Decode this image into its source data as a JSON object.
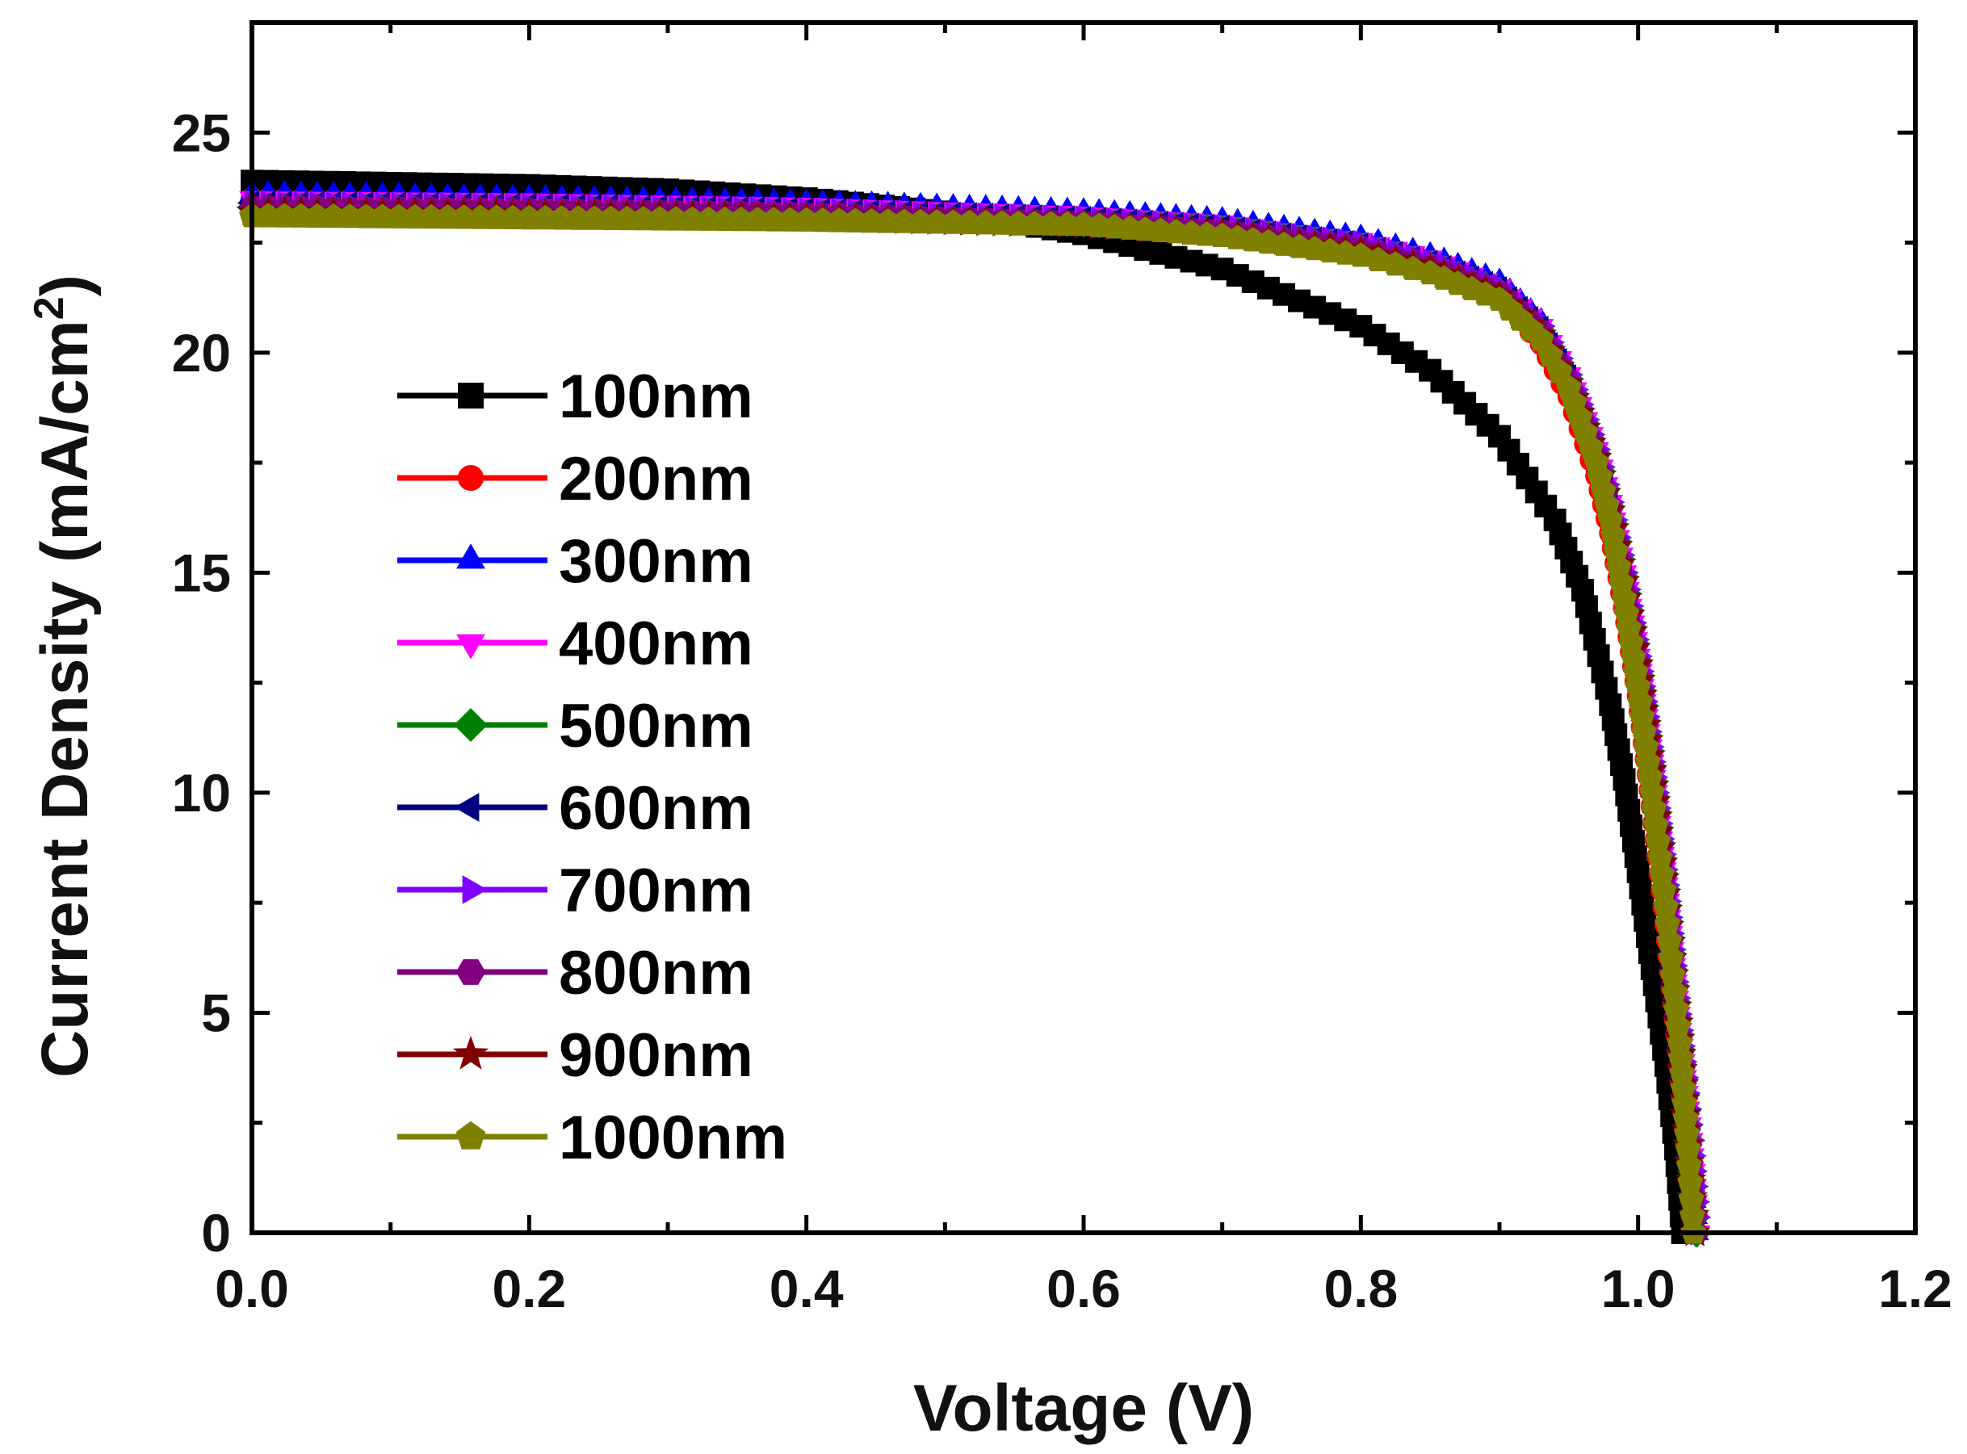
{
  "chart_data": {
    "type": "line",
    "title": "",
    "xlabel": "Voltage (V)",
    "ylabel_main": "Current Density (mA/cm",
    "ylabel_sup": "2",
    "ylabel_close": ")",
    "xlim": [
      0.0,
      1.2
    ],
    "ylim": [
      0,
      27.5
    ],
    "xticks": [
      0.0,
      0.2,
      0.4,
      0.6,
      0.8,
      1.0,
      1.2
    ],
    "xtick_labels": [
      "0.0",
      "0.2",
      "0.4",
      "0.6",
      "0.8",
      "1.0",
      "1.2"
    ],
    "yticks": [
      0,
      5,
      10,
      15,
      20,
      25
    ],
    "ytick_labels": [
      "0",
      "5",
      "10",
      "15",
      "20",
      "25"
    ],
    "grid": false,
    "legend_position": "center-left",
    "series": [
      {
        "name": "100nm",
        "color": "#000000",
        "marker": "square",
        "voc": 1.032,
        "jsc": 23.9,
        "points": [
          [
            0.0,
            23.9
          ],
          [
            0.1,
            23.85
          ],
          [
            0.2,
            23.8
          ],
          [
            0.3,
            23.7
          ],
          [
            0.4,
            23.5
          ],
          [
            0.5,
            23.2
          ],
          [
            0.6,
            22.7
          ],
          [
            0.7,
            21.9
          ],
          [
            0.8,
            20.6
          ],
          [
            0.85,
            19.6
          ],
          [
            0.9,
            18.1
          ],
          [
            0.94,
            16.2
          ],
          [
            0.96,
            14.6
          ],
          [
            0.98,
            12.0
          ],
          [
            0.99,
            10.3
          ],
          [
            1.0,
            8.2
          ],
          [
            1.01,
            6.0
          ],
          [
            1.02,
            3.8
          ],
          [
            1.027,
            1.9
          ],
          [
            1.032,
            0.0
          ]
        ]
      },
      {
        "name": "200nm",
        "color": "#ff0000",
        "marker": "circle",
        "voc": 1.04,
        "jsc": 23.5,
        "points": [
          [
            0.0,
            23.5
          ],
          [
            0.2,
            23.4
          ],
          [
            0.4,
            23.3
          ],
          [
            0.6,
            23.0
          ],
          [
            0.7,
            22.8
          ],
          [
            0.8,
            22.4
          ],
          [
            0.85,
            22.0
          ],
          [
            0.9,
            21.3
          ],
          [
            0.93,
            20.2
          ],
          [
            0.95,
            19.0
          ],
          [
            0.97,
            17.2
          ],
          [
            0.98,
            15.9
          ],
          [
            0.99,
            14.2
          ],
          [
            1.0,
            12.2
          ],
          [
            1.01,
            9.7
          ],
          [
            1.02,
            7.0
          ],
          [
            1.03,
            3.8
          ],
          [
            1.035,
            2.0
          ],
          [
            1.04,
            0.0
          ]
        ]
      },
      {
        "name": "300nm",
        "color": "#0000ff",
        "marker": "triangle-up",
        "voc": 1.042,
        "jsc": 23.6,
        "points": [
          [
            0.0,
            23.6
          ],
          [
            0.2,
            23.5
          ],
          [
            0.4,
            23.4
          ],
          [
            0.6,
            23.2
          ],
          [
            0.7,
            23.0
          ],
          [
            0.8,
            22.6
          ],
          [
            0.85,
            22.2
          ],
          [
            0.9,
            21.6
          ],
          [
            0.93,
            20.7
          ],
          [
            0.95,
            19.6
          ],
          [
            0.97,
            17.9
          ],
          [
            0.98,
            16.7
          ],
          [
            0.99,
            15.1
          ],
          [
            1.0,
            13.2
          ],
          [
            1.01,
            10.8
          ],
          [
            1.02,
            8.0
          ],
          [
            1.03,
            4.6
          ],
          [
            1.037,
            2.2
          ],
          [
            1.042,
            0.0
          ]
        ]
      },
      {
        "name": "400nm",
        "color": "#ff00ff",
        "marker": "triangle-down",
        "voc": 1.043,
        "jsc": 23.5,
        "points": [
          [
            0.0,
            23.5
          ],
          [
            0.2,
            23.45
          ],
          [
            0.4,
            23.35
          ],
          [
            0.6,
            23.15
          ],
          [
            0.7,
            22.95
          ],
          [
            0.8,
            22.55
          ],
          [
            0.85,
            22.15
          ],
          [
            0.9,
            21.5
          ],
          [
            0.93,
            20.6
          ],
          [
            0.95,
            19.5
          ],
          [
            0.97,
            17.8
          ],
          [
            0.98,
            16.6
          ],
          [
            0.99,
            15.0
          ],
          [
            1.0,
            13.1
          ],
          [
            1.01,
            10.7
          ],
          [
            1.02,
            7.9
          ],
          [
            1.03,
            4.6
          ],
          [
            1.038,
            2.1
          ],
          [
            1.043,
            0.0
          ]
        ]
      },
      {
        "name": "500nm",
        "color": "#008000",
        "marker": "diamond",
        "voc": 1.042,
        "jsc": 23.3,
        "points": [
          [
            0.0,
            23.3
          ],
          [
            0.2,
            23.25
          ],
          [
            0.4,
            23.15
          ],
          [
            0.6,
            22.95
          ],
          [
            0.7,
            22.8
          ],
          [
            0.8,
            22.4
          ],
          [
            0.85,
            22.0
          ],
          [
            0.9,
            21.4
          ],
          [
            0.93,
            20.5
          ],
          [
            0.95,
            19.4
          ],
          [
            0.97,
            17.7
          ],
          [
            0.98,
            16.5
          ],
          [
            0.99,
            14.9
          ],
          [
            1.0,
            13.0
          ],
          [
            1.01,
            10.6
          ],
          [
            1.02,
            7.8
          ],
          [
            1.03,
            4.5
          ],
          [
            1.037,
            2.1
          ],
          [
            1.042,
            0.0
          ]
        ]
      },
      {
        "name": "600nm",
        "color": "#000080",
        "marker": "triangle-left",
        "voc": 1.042,
        "jsc": 23.4,
        "points": [
          [
            0.0,
            23.4
          ],
          [
            0.2,
            23.35
          ],
          [
            0.4,
            23.25
          ],
          [
            0.6,
            23.05
          ],
          [
            0.7,
            22.85
          ],
          [
            0.8,
            22.45
          ],
          [
            0.85,
            22.05
          ],
          [
            0.9,
            21.45
          ],
          [
            0.93,
            20.55
          ],
          [
            0.95,
            19.45
          ],
          [
            0.97,
            17.75
          ],
          [
            0.98,
            16.55
          ],
          [
            0.99,
            14.95
          ],
          [
            1.0,
            13.05
          ],
          [
            1.01,
            10.65
          ],
          [
            1.02,
            7.85
          ],
          [
            1.03,
            4.55
          ],
          [
            1.037,
            2.1
          ],
          [
            1.042,
            0.0
          ]
        ]
      },
      {
        "name": "700nm",
        "color": "#8000ff",
        "marker": "triangle-right",
        "voc": 1.043,
        "jsc": 23.4,
        "points": [
          [
            0.0,
            23.4
          ],
          [
            0.2,
            23.35
          ],
          [
            0.4,
            23.25
          ],
          [
            0.6,
            23.05
          ],
          [
            0.7,
            22.85
          ],
          [
            0.8,
            22.5
          ],
          [
            0.85,
            22.1
          ],
          [
            0.9,
            21.5
          ],
          [
            0.93,
            20.6
          ],
          [
            0.95,
            19.5
          ],
          [
            0.97,
            17.8
          ],
          [
            0.98,
            16.6
          ],
          [
            0.99,
            15.0
          ],
          [
            1.0,
            13.1
          ],
          [
            1.01,
            10.7
          ],
          [
            1.02,
            7.9
          ],
          [
            1.03,
            4.6
          ],
          [
            1.038,
            2.1
          ],
          [
            1.043,
            0.0
          ]
        ]
      },
      {
        "name": "800nm",
        "color": "#800080",
        "marker": "hexagon",
        "voc": 1.042,
        "jsc": 23.3,
        "points": [
          [
            0.0,
            23.3
          ],
          [
            0.2,
            23.25
          ],
          [
            0.4,
            23.15
          ],
          [
            0.6,
            22.95
          ],
          [
            0.7,
            22.75
          ],
          [
            0.8,
            22.35
          ],
          [
            0.85,
            21.95
          ],
          [
            0.9,
            21.35
          ],
          [
            0.93,
            20.45
          ],
          [
            0.95,
            19.35
          ],
          [
            0.97,
            17.65
          ],
          [
            0.98,
            16.45
          ],
          [
            0.99,
            14.85
          ],
          [
            1.0,
            12.95
          ],
          [
            1.01,
            10.55
          ],
          [
            1.02,
            7.75
          ],
          [
            1.03,
            4.45
          ],
          [
            1.037,
            2.0
          ],
          [
            1.042,
            0.0
          ]
        ]
      },
      {
        "name": "900nm",
        "color": "#800000",
        "marker": "star",
        "voc": 1.041,
        "jsc": 23.2,
        "points": [
          [
            0.0,
            23.2
          ],
          [
            0.2,
            23.15
          ],
          [
            0.4,
            23.05
          ],
          [
            0.6,
            22.9
          ],
          [
            0.7,
            22.7
          ],
          [
            0.8,
            22.3
          ],
          [
            0.85,
            21.9
          ],
          [
            0.9,
            21.3
          ],
          [
            0.93,
            20.4
          ],
          [
            0.95,
            19.3
          ],
          [
            0.97,
            17.6
          ],
          [
            0.98,
            16.4
          ],
          [
            0.99,
            14.8
          ],
          [
            1.0,
            12.9
          ],
          [
            1.01,
            10.5
          ],
          [
            1.02,
            7.7
          ],
          [
            1.03,
            4.4
          ],
          [
            1.036,
            2.0
          ],
          [
            1.041,
            0.0
          ]
        ]
      },
      {
        "name": "1000nm",
        "color": "#808000",
        "marker": "pentagon",
        "voc": 1.04,
        "jsc": 23.1,
        "points": [
          [
            0.0,
            23.1
          ],
          [
            0.2,
            23.05
          ],
          [
            0.4,
            23.0
          ],
          [
            0.6,
            22.9
          ],
          [
            0.7,
            22.65
          ],
          [
            0.8,
            22.2
          ],
          [
            0.85,
            21.8
          ],
          [
            0.9,
            21.2
          ],
          [
            0.93,
            20.3
          ],
          [
            0.95,
            19.2
          ],
          [
            0.97,
            17.5
          ],
          [
            0.98,
            16.2
          ],
          [
            0.99,
            14.4
          ],
          [
            1.0,
            12.4
          ],
          [
            1.01,
            10.0
          ],
          [
            1.02,
            7.4
          ],
          [
            1.03,
            4.3
          ],
          [
            1.036,
            1.9
          ],
          [
            1.04,
            0.0
          ]
        ]
      }
    ]
  }
}
